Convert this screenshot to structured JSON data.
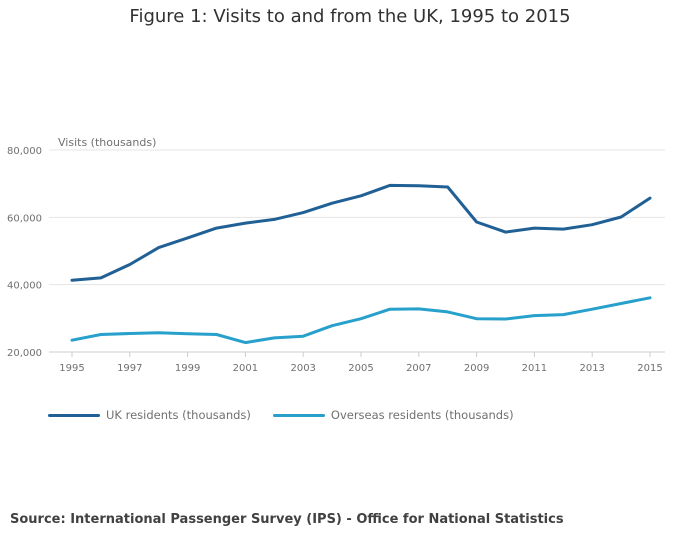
{
  "title": "Figure 1: Visits to and from the UK, 1995 to 2015",
  "source": "Source: International Passenger Survey (IPS) - Office for National Statistics",
  "chart_data": {
    "type": "line",
    "title": "Figure 1: Visits to and from the UK, 1995 to 2015",
    "xlabel": "",
    "ylabel": "Visits (thousands)",
    "ylim": [
      20000,
      80000
    ],
    "yticks": [
      20000,
      40000,
      60000,
      80000
    ],
    "ytick_labels": [
      "20,000",
      "40,000",
      "60,000",
      "80,000"
    ],
    "xlim": [
      1995,
      2015
    ],
    "xtick_labels": [
      "1995",
      "1997",
      "1999",
      "2001",
      "2003",
      "2005",
      "2007",
      "2009",
      "2011",
      "2013",
      "2015"
    ],
    "grid": true,
    "legend_position": "bottom-left",
    "x": [
      1995,
      1996,
      1997,
      1998,
      1999,
      2000,
      2001,
      2002,
      2003,
      2004,
      2005,
      2006,
      2007,
      2008,
      2009,
      2010,
      2011,
      2012,
      2013,
      2014,
      2015
    ],
    "series": [
      {
        "name": "UK residents (thousands)",
        "color": "#206095",
        "values": [
          41300,
          42000,
          46000,
          51000,
          53900,
          56800,
          58300,
          59400,
          61400,
          64200,
          66400,
          69500,
          69400,
          69000,
          58600,
          55600,
          56800,
          56500,
          57800,
          60100,
          65700
        ]
      },
      {
        "name": "Overseas residents (thousands)",
        "color": "#27a0cc",
        "values": [
          23500,
          25200,
          25500,
          25700,
          25400,
          25200,
          22800,
          24200,
          24700,
          27800,
          29900,
          32700,
          32800,
          31900,
          29900,
          29800,
          30800,
          31100,
          32700,
          34400,
          36100
        ]
      }
    ]
  }
}
